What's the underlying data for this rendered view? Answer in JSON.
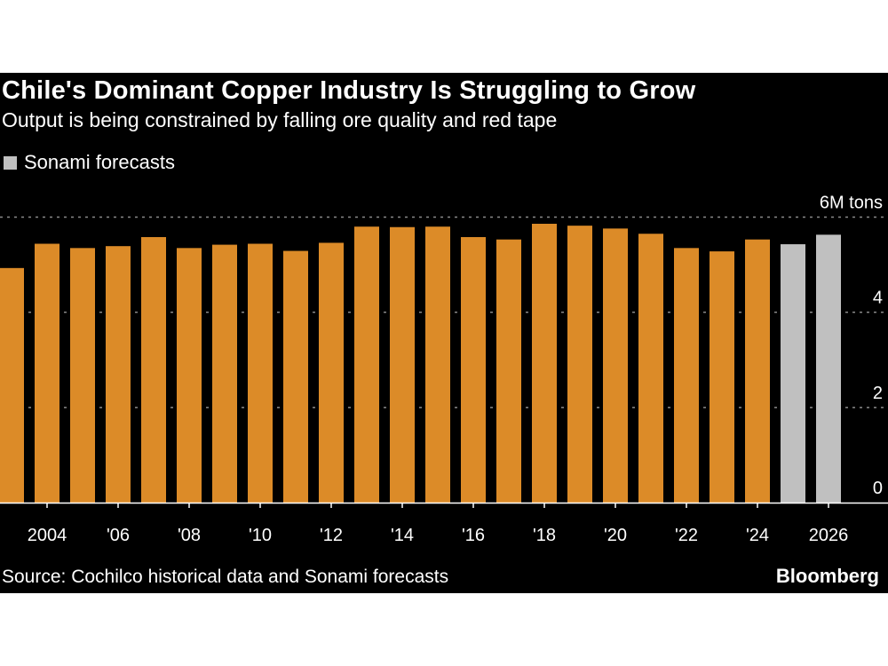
{
  "chart_data": {
    "type": "bar",
    "title": "Chile's Dominant Copper Industry Is Struggling to Grow",
    "subtitle": "Output is being constrained by falling ore quality and red tape",
    "legend": [
      {
        "name": "Sonami forecasts",
        "color": "#c0c0c0"
      }
    ],
    "categories": [
      2003,
      2004,
      2005,
      2006,
      2007,
      2008,
      2009,
      2010,
      2011,
      2012,
      2013,
      2014,
      2015,
      2016,
      2017,
      2018,
      2019,
      2020,
      2021,
      2022,
      2023,
      2024,
      2025,
      2026
    ],
    "values": [
      4.93,
      5.44,
      5.35,
      5.39,
      5.58,
      5.35,
      5.42,
      5.44,
      5.29,
      5.46,
      5.8,
      5.79,
      5.8,
      5.58,
      5.53,
      5.86,
      5.82,
      5.76,
      5.65,
      5.35,
      5.28,
      5.53,
      5.43,
      5.63
    ],
    "forecast": [
      false,
      false,
      false,
      false,
      false,
      false,
      false,
      false,
      false,
      false,
      false,
      false,
      false,
      false,
      false,
      false,
      false,
      false,
      false,
      false,
      false,
      false,
      true,
      true
    ],
    "colors": {
      "historical": "#dc8b28",
      "forecast": "#c0c0c0",
      "background": "#000000"
    },
    "x_tick_labels": [
      {
        "year": 2004,
        "label": "2004"
      },
      {
        "year": 2006,
        "label": "'06"
      },
      {
        "year": 2008,
        "label": "'08"
      },
      {
        "year": 2010,
        "label": "'10"
      },
      {
        "year": 2012,
        "label": "'12"
      },
      {
        "year": 2014,
        "label": "'14"
      },
      {
        "year": 2016,
        "label": "'16"
      },
      {
        "year": 2018,
        "label": "'18"
      },
      {
        "year": 2020,
        "label": "'20"
      },
      {
        "year": 2022,
        "label": "'22"
      },
      {
        "year": 2024,
        "label": "'24"
      },
      {
        "year": 2026,
        "label": "2026"
      }
    ],
    "y_ticks": [
      {
        "value": 0,
        "label": "0"
      },
      {
        "value": 2,
        "label": "2"
      },
      {
        "value": 4,
        "label": "4"
      },
      {
        "value": 6,
        "label": "6M tons"
      }
    ],
    "ylim": [
      0,
      6
    ],
    "grid": true,
    "y_axis_side": "right",
    "legend_placement": "top-left"
  },
  "source": "Source: Cochilco historical data and Sonami forecasts",
  "brand": "Bloomberg"
}
